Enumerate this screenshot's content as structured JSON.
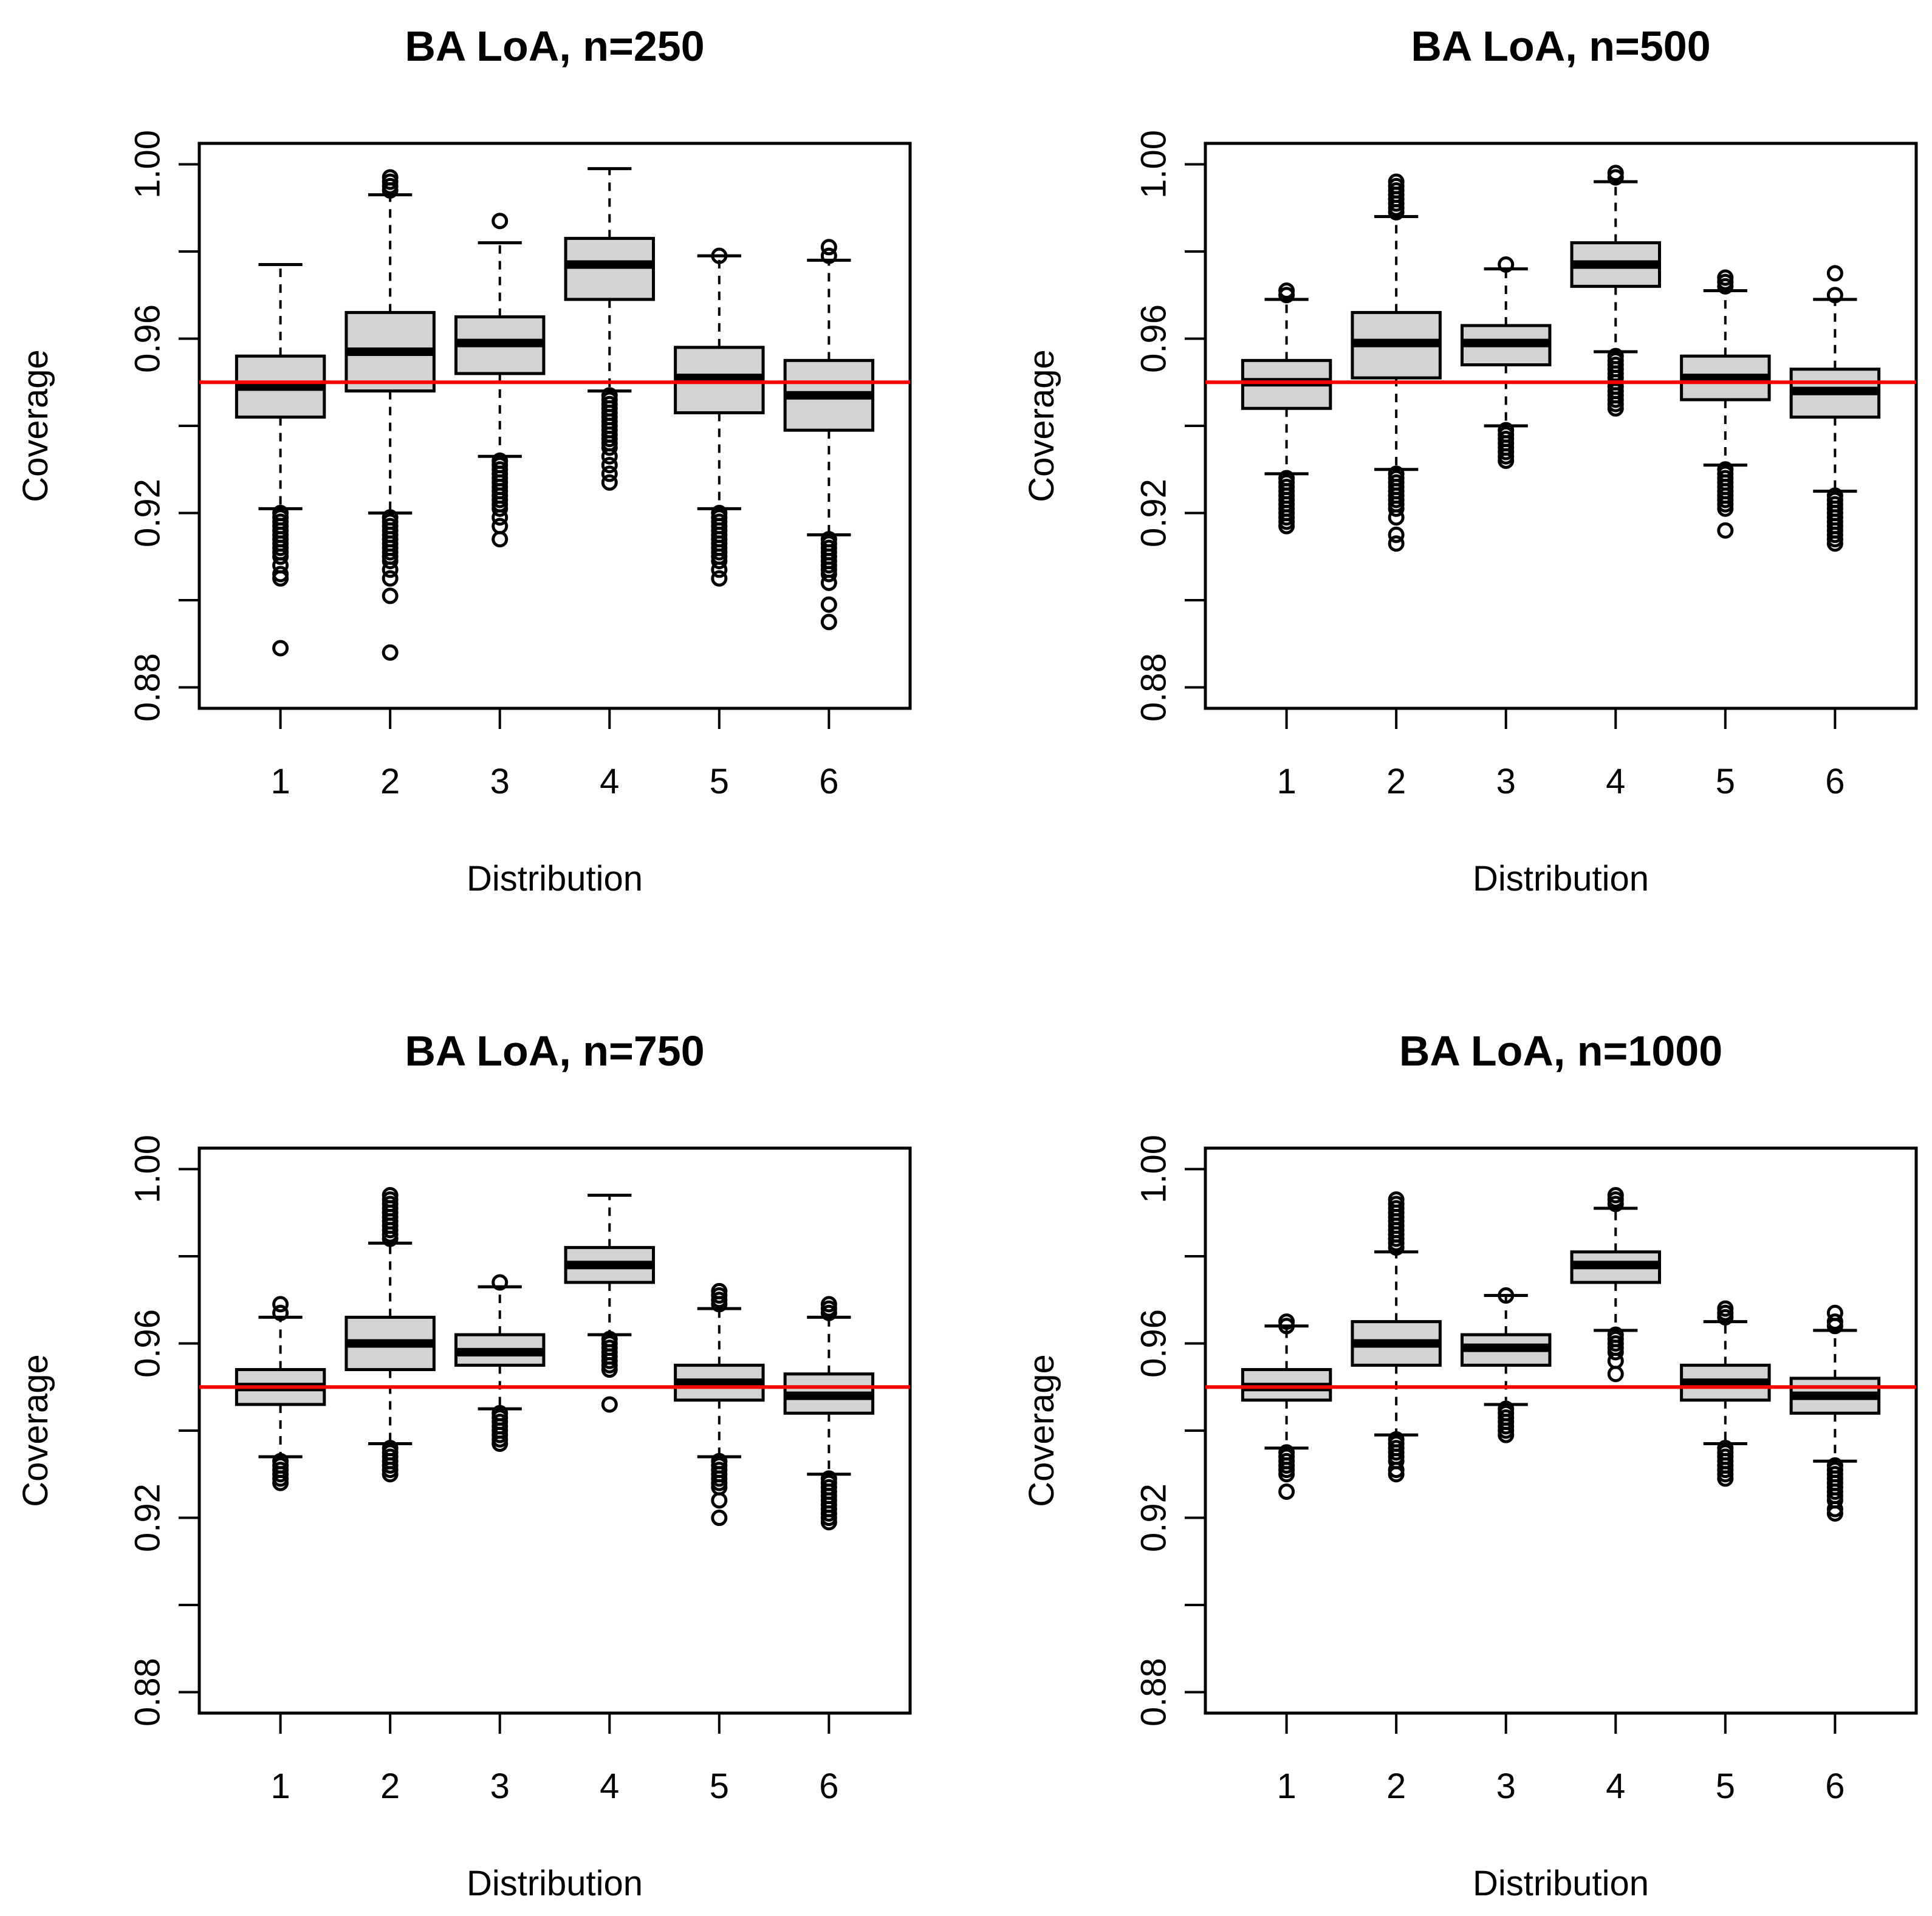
{
  "chart_data": [
    {
      "type": "boxplot",
      "title": "BA LoA, n=250",
      "xlabel": "Distribution",
      "ylabel": "Coverage",
      "ylim": [
        0.88,
        1.0
      ],
      "yticks": [
        "0.88",
        "0.92",
        "0.96",
        "1.00"
      ],
      "ytick_values": [
        0.88,
        0.9,
        0.92,
        0.94,
        0.96,
        0.98,
        1.0
      ],
      "categories": [
        "1",
        "2",
        "3",
        "4",
        "5",
        "6"
      ],
      "reference_line": 0.95,
      "reference_color": "#ff0000",
      "box_fill": "#d3d3d3",
      "boxes": [
        {
          "median": 0.949,
          "q1": 0.942,
          "q3": 0.956,
          "whisker_low": 0.921,
          "whisker_high": 0.977,
          "outliers": [
            0.889,
            0.905,
            0.906,
            0.908,
            0.91,
            0.911,
            0.912,
            0.913,
            0.914,
            0.915,
            0.916,
            0.917,
            0.918,
            0.919,
            0.92
          ]
        },
        {
          "median": 0.957,
          "q1": 0.948,
          "q3": 0.966,
          "whisker_low": 0.92,
          "whisker_high": 0.993,
          "outliers": [
            0.888,
            0.901,
            0.905,
            0.907,
            0.909,
            0.91,
            0.911,
            0.912,
            0.913,
            0.914,
            0.915,
            0.916,
            0.917,
            0.918,
            0.919,
            0.994,
            0.995,
            0.996,
            0.997
          ]
        },
        {
          "median": 0.959,
          "q1": 0.952,
          "q3": 0.965,
          "whisker_low": 0.933,
          "whisker_high": 0.982,
          "outliers": [
            0.914,
            0.917,
            0.919,
            0.921,
            0.922,
            0.923,
            0.924,
            0.925,
            0.926,
            0.927,
            0.928,
            0.929,
            0.93,
            0.931,
            0.932,
            0.987
          ]
        },
        {
          "median": 0.977,
          "q1": 0.969,
          "q3": 0.983,
          "whisker_low": 0.948,
          "whisker_high": 0.999,
          "outliers": [
            0.927,
            0.929,
            0.931,
            0.933,
            0.935,
            0.936,
            0.937,
            0.938,
            0.939,
            0.94,
            0.941,
            0.942,
            0.943,
            0.944,
            0.945,
            0.946,
            0.947
          ]
        },
        {
          "median": 0.951,
          "q1": 0.943,
          "q3": 0.958,
          "whisker_low": 0.921,
          "whisker_high": 0.979,
          "outliers": [
            0.905,
            0.907,
            0.909,
            0.91,
            0.911,
            0.912,
            0.913,
            0.914,
            0.915,
            0.916,
            0.917,
            0.918,
            0.919,
            0.92,
            0.979
          ]
        },
        {
          "median": 0.947,
          "q1": 0.939,
          "q3": 0.955,
          "whisker_low": 0.915,
          "whisker_high": 0.978,
          "outliers": [
            0.895,
            0.899,
            0.904,
            0.906,
            0.907,
            0.908,
            0.909,
            0.91,
            0.911,
            0.912,
            0.913,
            0.914,
            0.979,
            0.981
          ]
        }
      ]
    },
    {
      "type": "boxplot",
      "title": "BA LoA, n=500",
      "xlabel": "Distribution",
      "ylabel": "Coverage",
      "ylim": [
        0.88,
        1.0
      ],
      "yticks": [
        "0.88",
        "0.92",
        "0.96",
        "1.00"
      ],
      "ytick_values": [
        0.88,
        0.9,
        0.92,
        0.94,
        0.96,
        0.98,
        1.0
      ],
      "categories": [
        "1",
        "2",
        "3",
        "4",
        "5",
        "6"
      ],
      "reference_line": 0.95,
      "reference_color": "#ff0000",
      "box_fill": "#d3d3d3",
      "boxes": [
        {
          "median": 0.95,
          "q1": 0.944,
          "q3": 0.955,
          "whisker_low": 0.929,
          "whisker_high": 0.969,
          "outliers": [
            0.917,
            0.918,
            0.919,
            0.92,
            0.921,
            0.922,
            0.923,
            0.924,
            0.925,
            0.926,
            0.927,
            0.928,
            0.97,
            0.971
          ]
        },
        {
          "median": 0.959,
          "q1": 0.951,
          "q3": 0.966,
          "whisker_low": 0.93,
          "whisker_high": 0.988,
          "outliers": [
            0.913,
            0.915,
            0.919,
            0.921,
            0.922,
            0.923,
            0.924,
            0.925,
            0.926,
            0.927,
            0.928,
            0.929,
            0.989,
            0.99,
            0.991,
            0.992,
            0.993,
            0.994,
            0.995,
            0.996
          ]
        },
        {
          "median": 0.959,
          "q1": 0.954,
          "q3": 0.963,
          "whisker_low": 0.94,
          "whisker_high": 0.976,
          "outliers": [
            0.932,
            0.933,
            0.934,
            0.935,
            0.936,
            0.937,
            0.938,
            0.939,
            0.977
          ]
        },
        {
          "median": 0.977,
          "q1": 0.972,
          "q3": 0.982,
          "whisker_low": 0.957,
          "whisker_high": 0.996,
          "outliers": [
            0.944,
            0.945,
            0.946,
            0.947,
            0.948,
            0.949,
            0.95,
            0.951,
            0.952,
            0.953,
            0.954,
            0.955,
            0.956,
            0.997,
            0.998
          ]
        },
        {
          "median": 0.951,
          "q1": 0.946,
          "q3": 0.956,
          "whisker_low": 0.931,
          "whisker_high": 0.971,
          "outliers": [
            0.916,
            0.921,
            0.922,
            0.923,
            0.924,
            0.925,
            0.926,
            0.927,
            0.928,
            0.929,
            0.93,
            0.972,
            0.973,
            0.974
          ]
        },
        {
          "median": 0.948,
          "q1": 0.942,
          "q3": 0.953,
          "whisker_low": 0.925,
          "whisker_high": 0.969,
          "outliers": [
            0.913,
            0.914,
            0.915,
            0.916,
            0.917,
            0.918,
            0.919,
            0.92,
            0.921,
            0.922,
            0.923,
            0.924,
            0.97,
            0.975
          ]
        }
      ]
    },
    {
      "type": "boxplot",
      "title": "BA LoA, n=750",
      "xlabel": "Distribution",
      "ylabel": "Coverage",
      "ylim": [
        0.88,
        1.0
      ],
      "yticks": [
        "0.88",
        "0.92",
        "0.96",
        "1.00"
      ],
      "ytick_values": [
        0.88,
        0.9,
        0.92,
        0.94,
        0.96,
        0.98,
        1.0
      ],
      "categories": [
        "1",
        "2",
        "3",
        "4",
        "5",
        "6"
      ],
      "reference_line": 0.95,
      "reference_color": "#ff0000",
      "box_fill": "#d3d3d3",
      "boxes": [
        {
          "median": 0.95,
          "q1": 0.946,
          "q3": 0.954,
          "whisker_low": 0.934,
          "whisker_high": 0.966,
          "outliers": [
            0.928,
            0.929,
            0.93,
            0.931,
            0.932,
            0.933,
            0.967,
            0.969
          ]
        },
        {
          "median": 0.96,
          "q1": 0.954,
          "q3": 0.966,
          "whisker_low": 0.937,
          "whisker_high": 0.983,
          "outliers": [
            0.93,
            0.931,
            0.932,
            0.933,
            0.934,
            0.935,
            0.936,
            0.984,
            0.985,
            0.986,
            0.987,
            0.988,
            0.989,
            0.99,
            0.991,
            0.992,
            0.993,
            0.994
          ]
        },
        {
          "median": 0.958,
          "q1": 0.955,
          "q3": 0.962,
          "whisker_low": 0.945,
          "whisker_high": 0.973,
          "outliers": [
            0.937,
            0.938,
            0.939,
            0.94,
            0.941,
            0.942,
            0.943,
            0.944,
            0.974
          ]
        },
        {
          "median": 0.978,
          "q1": 0.974,
          "q3": 0.982,
          "whisker_low": 0.962,
          "whisker_high": 0.994,
          "outliers": [
            0.946,
            0.954,
            0.955,
            0.956,
            0.957,
            0.958,
            0.959,
            0.96,
            0.961
          ]
        },
        {
          "median": 0.951,
          "q1": 0.947,
          "q3": 0.955,
          "whisker_low": 0.934,
          "whisker_high": 0.968,
          "outliers": [
            0.92,
            0.924,
            0.927,
            0.928,
            0.929,
            0.93,
            0.931,
            0.932,
            0.933,
            0.969,
            0.97,
            0.971,
            0.972
          ]
        },
        {
          "median": 0.948,
          "q1": 0.944,
          "q3": 0.953,
          "whisker_low": 0.93,
          "whisker_high": 0.966,
          "outliers": [
            0.919,
            0.92,
            0.921,
            0.922,
            0.923,
            0.924,
            0.925,
            0.926,
            0.927,
            0.928,
            0.929,
            0.967,
            0.968,
            0.969
          ]
        }
      ]
    },
    {
      "type": "boxplot",
      "title": "BA LoA, n=1000",
      "xlabel": "Distribution",
      "ylabel": "Coverage",
      "ylim": [
        0.88,
        1.0
      ],
      "yticks": [
        "0.88",
        "0.92",
        "0.96",
        "1.00"
      ],
      "ytick_values": [
        0.88,
        0.9,
        0.92,
        0.94,
        0.96,
        0.98,
        1.0
      ],
      "categories": [
        "1",
        "2",
        "3",
        "4",
        "5",
        "6"
      ],
      "reference_line": 0.95,
      "reference_color": "#ff0000",
      "box_fill": "#d3d3d3",
      "boxes": [
        {
          "median": 0.95,
          "q1": 0.947,
          "q3": 0.954,
          "whisker_low": 0.936,
          "whisker_high": 0.964,
          "outliers": [
            0.926,
            0.93,
            0.931,
            0.932,
            0.933,
            0.934,
            0.935,
            0.964,
            0.965
          ]
        },
        {
          "median": 0.96,
          "q1": 0.955,
          "q3": 0.965,
          "whisker_low": 0.939,
          "whisker_high": 0.981,
          "outliers": [
            0.93,
            0.931,
            0.933,
            0.934,
            0.935,
            0.936,
            0.937,
            0.938,
            0.982,
            0.983,
            0.984,
            0.985,
            0.986,
            0.987,
            0.988,
            0.989,
            0.99,
            0.991,
            0.992,
            0.993
          ]
        },
        {
          "median": 0.959,
          "q1": 0.955,
          "q3": 0.962,
          "whisker_low": 0.946,
          "whisker_high": 0.971,
          "outliers": [
            0.939,
            0.94,
            0.941,
            0.942,
            0.943,
            0.944,
            0.945,
            0.971
          ]
        },
        {
          "median": 0.978,
          "q1": 0.974,
          "q3": 0.981,
          "whisker_low": 0.963,
          "whisker_high": 0.991,
          "outliers": [
            0.953,
            0.956,
            0.958,
            0.959,
            0.96,
            0.961,
            0.962,
            0.992,
            0.993,
            0.994
          ]
        },
        {
          "median": 0.951,
          "q1": 0.947,
          "q3": 0.955,
          "whisker_low": 0.937,
          "whisker_high": 0.965,
          "outliers": [
            0.929,
            0.93,
            0.931,
            0.932,
            0.933,
            0.934,
            0.935,
            0.936,
            0.966,
            0.967,
            0.968
          ]
        },
        {
          "median": 0.948,
          "q1": 0.944,
          "q3": 0.952,
          "whisker_low": 0.933,
          "whisker_high": 0.963,
          "outliers": [
            0.921,
            0.922,
            0.924,
            0.925,
            0.926,
            0.927,
            0.928,
            0.929,
            0.93,
            0.931,
            0.932,
            0.964,
            0.965,
            0.967
          ]
        }
      ]
    }
  ]
}
